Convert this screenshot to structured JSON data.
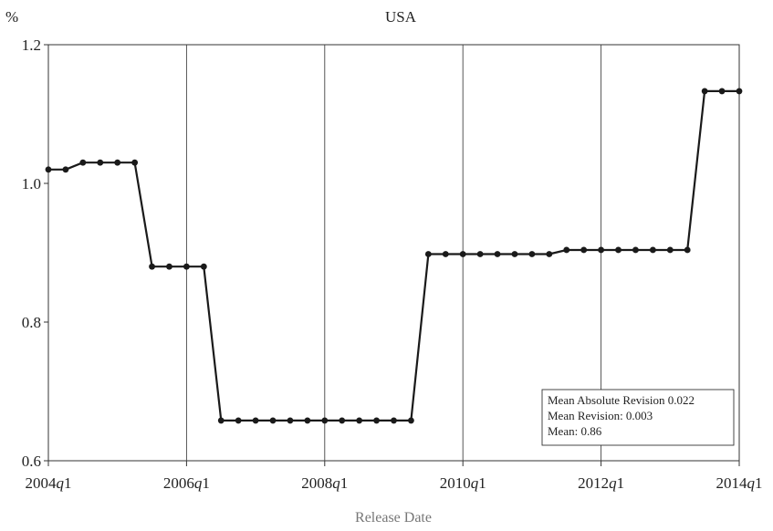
{
  "chart_data": {
    "type": "line",
    "title": "USA",
    "ylabel": "%",
    "xlabel": "Release Date",
    "ylim": [
      0.6,
      1.2
    ],
    "yticks": [
      0.6,
      0.8,
      1.0,
      1.2
    ],
    "ytick_labels": [
      "0.6",
      "0.8",
      "1.0",
      "1.2"
    ],
    "xlim": [
      2004.0,
      2014.0
    ],
    "xticks": [
      {
        "value": 2004.0,
        "year": "2004",
        "q": "q",
        "num": "1"
      },
      {
        "value": 2006.0,
        "year": "2006",
        "q": "q",
        "num": "1"
      },
      {
        "value": 2008.0,
        "year": "2008",
        "q": "q",
        "num": "1"
      },
      {
        "value": 2010.0,
        "year": "2010",
        "q": "q",
        "num": "1"
      },
      {
        "value": 2012.0,
        "year": "2012",
        "q": "q",
        "num": "1"
      },
      {
        "value": 2014.0,
        "year": "2014",
        "q": "q",
        "num": "1"
      }
    ],
    "grid": {
      "vertical": true,
      "horizontal": false
    },
    "legend_placement": "bottom-right",
    "annotation_lines": [
      "Mean Absolute Revision 0.022",
      "Mean Revision: 0.003",
      "Mean: 0.86"
    ],
    "series": [
      {
        "color": "#1a1a1a",
        "x": [
          2004.0,
          2004.25,
          2004.5,
          2004.75,
          2005.0,
          2005.25,
          2005.5,
          2005.75,
          2006.0,
          2006.25,
          2006.5,
          2006.75,
          2007.0,
          2007.25,
          2007.5,
          2007.75,
          2008.0,
          2008.25,
          2008.5,
          2008.75,
          2009.0,
          2009.25,
          2009.5,
          2009.75,
          2010.0,
          2010.25,
          2010.5,
          2010.75,
          2011.0,
          2011.25,
          2011.5,
          2011.75,
          2012.0,
          2012.25,
          2012.5,
          2012.75,
          2013.0,
          2013.25,
          2013.5,
          2013.75,
          2014.0
        ],
        "values": [
          1.02,
          1.02,
          1.03,
          1.03,
          1.03,
          1.03,
          0.88,
          0.88,
          0.88,
          0.88,
          0.658,
          0.658,
          0.658,
          0.658,
          0.658,
          0.658,
          0.658,
          0.658,
          0.658,
          0.658,
          0.658,
          0.658,
          0.898,
          0.898,
          0.898,
          0.898,
          0.898,
          0.898,
          0.898,
          0.898,
          0.904,
          0.904,
          0.904,
          0.904,
          0.904,
          0.904,
          0.904,
          0.904,
          1.133,
          1.133,
          1.133
        ]
      }
    ]
  }
}
